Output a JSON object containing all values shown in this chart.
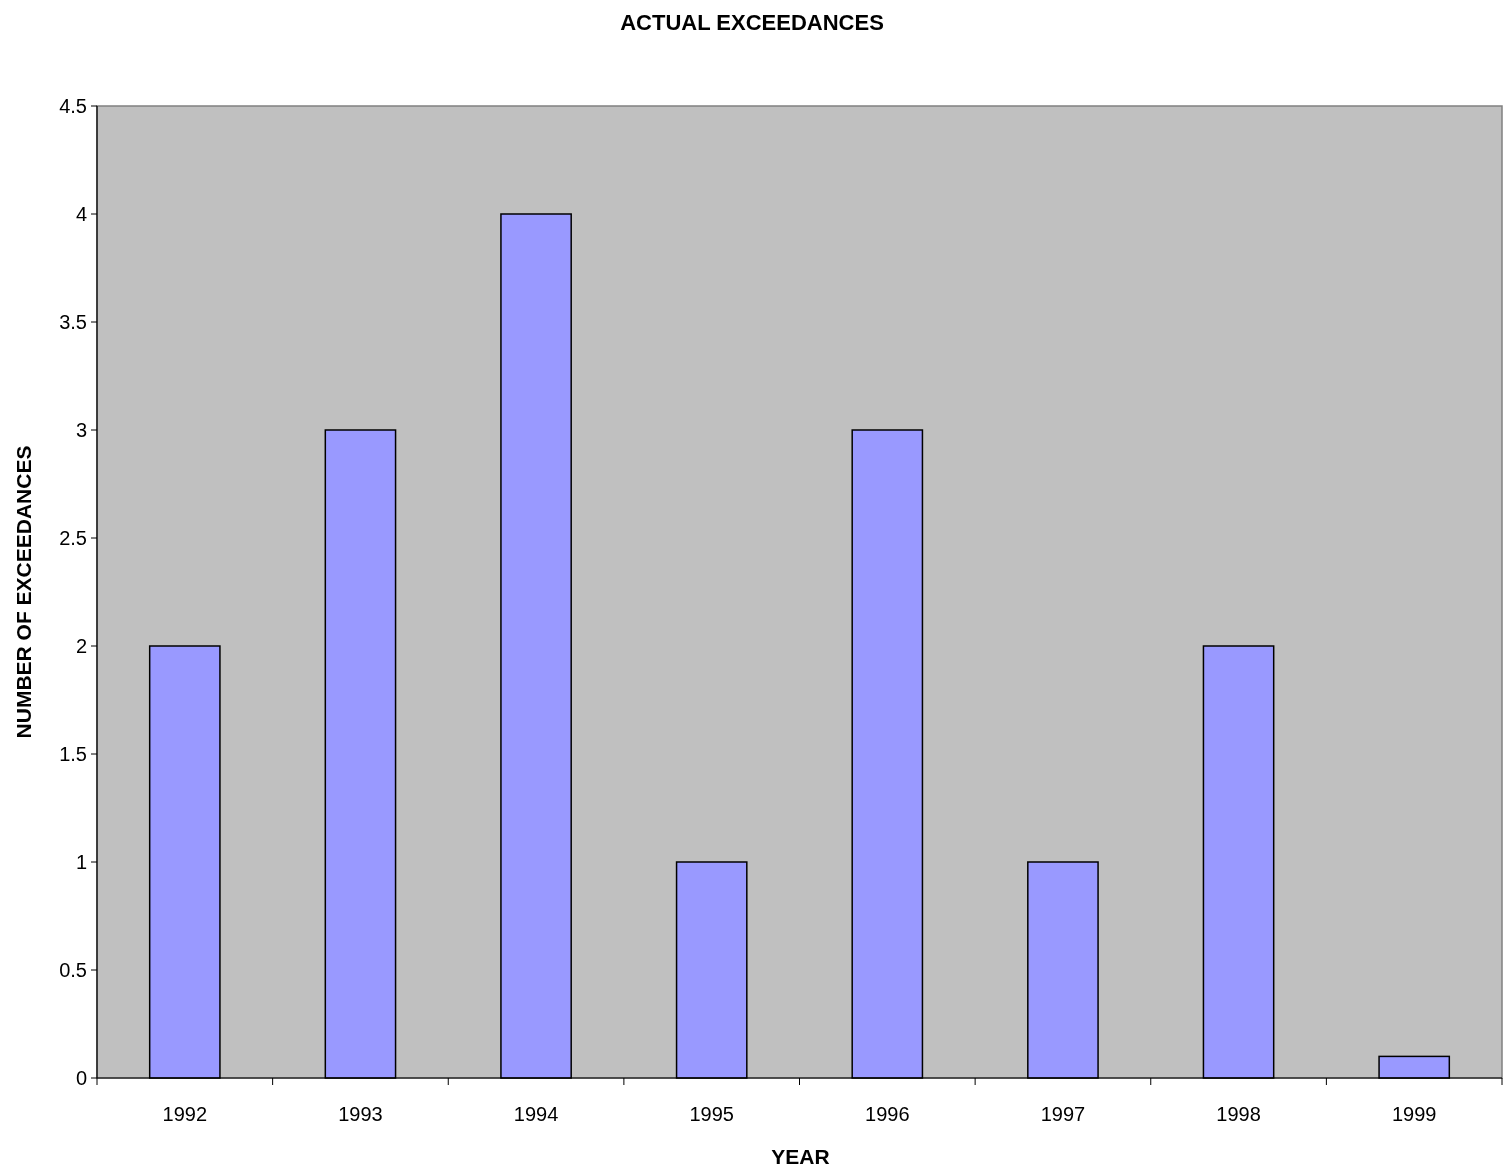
{
  "chart_data": {
    "type": "bar",
    "title": "ACTUAL EXCEEDANCES",
    "xlabel": "YEAR",
    "ylabel": "NUMBER OF EXCEEDANCES",
    "categories": [
      "1992",
      "1993",
      "1994",
      "1995",
      "1996",
      "1997",
      "1998",
      "1999"
    ],
    "values": [
      2,
      3,
      4,
      1,
      3,
      1,
      2,
      0.1
    ],
    "color": "#9999ff",
    "ylim": [
      0,
      4.5
    ],
    "yticks": [
      0,
      0.5,
      1,
      1.5,
      2,
      2.5,
      3,
      3.5,
      4,
      4.5
    ],
    "grid": false
  }
}
